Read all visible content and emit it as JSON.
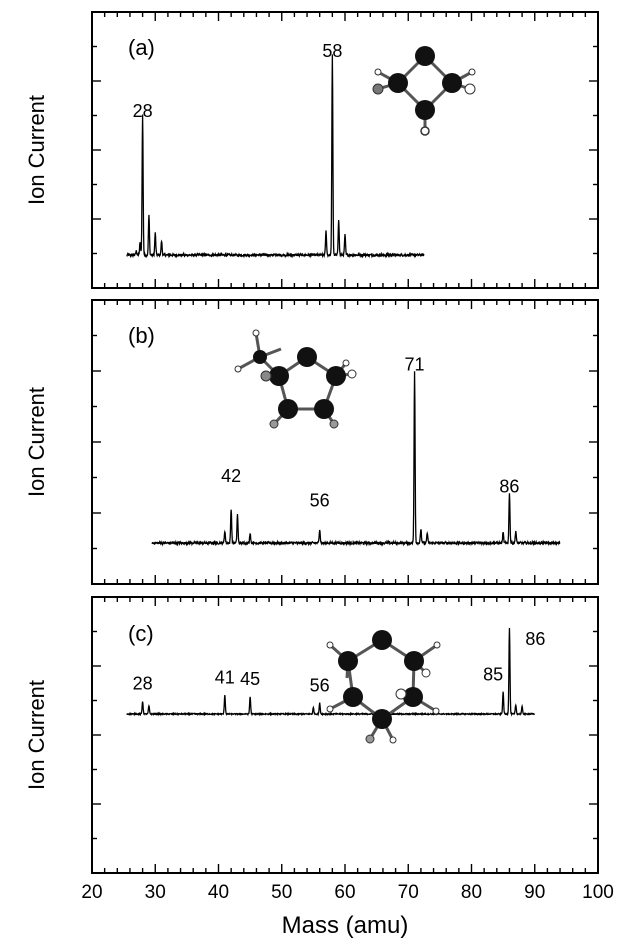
{
  "figure": {
    "xlabel": "Mass (amu)",
    "ylabel": "Ion Current"
  },
  "chart_data": [
    {
      "type": "line",
      "panel_label": "(a)",
      "xlabel": "Mass (amu)",
      "ylabel": "Ion Current",
      "xlim": [
        20,
        100
      ],
      "ylim": [
        0,
        1
      ],
      "x_ticks": [
        20,
        30,
        40,
        50,
        60,
        70,
        80,
        90,
        100
      ],
      "x_tick_labels_shown": false,
      "grid": false,
      "annotations": [
        {
          "text": "28",
          "x": 28,
          "y": 0.7
        },
        {
          "text": "58",
          "x": 58,
          "y": 1.0
        }
      ],
      "x_range": [
        25.5,
        72.5
      ],
      "baseline": 0.05,
      "peaks": [
        {
          "x": 27.0,
          "y": 0.02
        },
        {
          "x": 27.6,
          "y": 0.06
        },
        {
          "x": 28.0,
          "y": 0.7
        },
        {
          "x": 29.0,
          "y": 0.2
        },
        {
          "x": 30.0,
          "y": 0.11
        },
        {
          "x": 31.0,
          "y": 0.07
        },
        {
          "x": 57.0,
          "y": 0.12
        },
        {
          "x": 58.0,
          "y": 1.0
        },
        {
          "x": 59.0,
          "y": 0.18
        },
        {
          "x": 60.0,
          "y": 0.1
        }
      ]
    },
    {
      "type": "line",
      "panel_label": "(b)",
      "xlabel": "Mass (amu)",
      "ylabel": "Ion Current",
      "xlim": [
        20,
        100
      ],
      "ylim": [
        0,
        1
      ],
      "x_ticks": [
        20,
        30,
        40,
        50,
        60,
        70,
        80,
        90,
        100
      ],
      "x_tick_labels_shown": false,
      "grid": false,
      "annotations": [
        {
          "text": "42",
          "x": 42,
          "y": 0.3
        },
        {
          "text": "56",
          "x": 56,
          "y": 0.18
        },
        {
          "text": "71",
          "x": 71,
          "y": 0.85
        },
        {
          "text": "86",
          "x": 86,
          "y": 0.25
        }
      ],
      "x_range": [
        29.5,
        94.0
      ],
      "baseline": 0.04,
      "peaks": [
        {
          "x": 41.0,
          "y": 0.06
        },
        {
          "x": 42.0,
          "y": 0.17
        },
        {
          "x": 43.0,
          "y": 0.14
        },
        {
          "x": 45.0,
          "y": 0.05
        },
        {
          "x": 56.0,
          "y": 0.07
        },
        {
          "x": 71.0,
          "y": 0.85
        },
        {
          "x": 72.0,
          "y": 0.07
        },
        {
          "x": 73.0,
          "y": 0.05
        },
        {
          "x": 85.0,
          "y": 0.05
        },
        {
          "x": 86.0,
          "y": 0.25
        },
        {
          "x": 87.0,
          "y": 0.06
        }
      ]
    },
    {
      "type": "line",
      "panel_label": "(c)",
      "xlabel": "Mass (amu)",
      "ylabel": "Ion Current",
      "xlim": [
        20,
        100
      ],
      "ylim": [
        0,
        1
      ],
      "x_ticks": [
        20,
        30,
        40,
        50,
        60,
        70,
        80,
        90,
        100
      ],
      "x_tick_labels_shown": true,
      "grid": false,
      "annotations": [
        {
          "text": "28",
          "x": 28,
          "y": 0.22
        },
        {
          "text": "41",
          "x": 41,
          "y": 0.29
        },
        {
          "text": "45",
          "x": 45,
          "y": 0.27
        },
        {
          "text": "56",
          "x": 56,
          "y": 0.2
        },
        {
          "text": "85",
          "x": 85,
          "y": 0.32
        },
        {
          "text": "86",
          "x": 86,
          "y": 0.95
        }
      ],
      "x_range": [
        25.5,
        90.0
      ],
      "baseline": 0.04,
      "peaks": [
        {
          "x": 28.0,
          "y": 0.14
        },
        {
          "x": 29.0,
          "y": 0.09
        },
        {
          "x": 41.0,
          "y": 0.21
        },
        {
          "x": 45.0,
          "y": 0.19
        },
        {
          "x": 55.0,
          "y": 0.07
        },
        {
          "x": 56.0,
          "y": 0.12
        },
        {
          "x": 85.0,
          "y": 0.24
        },
        {
          "x": 86.0,
          "y": 0.95
        },
        {
          "x": 87.0,
          "y": 0.1
        },
        {
          "x": 88.0,
          "y": 0.08
        }
      ]
    }
  ]
}
